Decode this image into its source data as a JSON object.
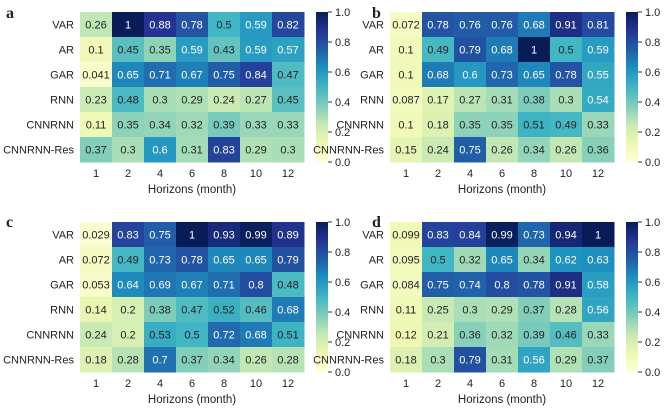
{
  "figure": {
    "colors": {
      "colormap": [
        "#ffffd9",
        "#edf8b1",
        "#c7e9b4",
        "#7fcdbb",
        "#41b6c4",
        "#1d91c0",
        "#225ea8",
        "#253494",
        "#081d58"
      ],
      "text_dark": "#222222",
      "text_light": "#ffffff"
    }
  },
  "chart_data": [
    {
      "type": "heatmap",
      "panel_label": "a",
      "rows": [
        "VAR",
        "AR",
        "GAR",
        "RNN",
        "CNNRNN",
        "CNNRNN-Res"
      ],
      "columns": [
        "1",
        "2",
        "4",
        "6",
        "8",
        "10",
        "12"
      ],
      "values": [
        [
          0.26,
          1,
          0.88,
          0.78,
          0.5,
          0.59,
          0.82
        ],
        [
          0.1,
          0.45,
          0.35,
          0.59,
          0.43,
          0.59,
          0.57
        ],
        [
          0.041,
          0.65,
          0.71,
          0.67,
          0.75,
          0.84,
          0.47
        ],
        [
          0.23,
          0.48,
          0.3,
          0.29,
          0.24,
          0.27,
          0.45
        ],
        [
          0.11,
          0.35,
          0.34,
          0.32,
          0.39,
          0.33,
          0.33
        ],
        [
          0.37,
          0.3,
          0.6,
          0.31,
          0.83,
          0.29,
          0.3
        ]
      ],
      "xlabel": "Horizons (month)",
      "ylabel": "",
      "colorbar": {
        "min": 0.0,
        "max": 1.0,
        "ticks": [
          "0.0",
          "0.2",
          "0.4",
          "0.6",
          "0.8",
          "1.0"
        ]
      }
    },
    {
      "type": "heatmap",
      "panel_label": "b",
      "rows": [
        "VAR",
        "AR",
        "GAR",
        "RNN",
        "CNNRNN",
        "CNNRNN-Res"
      ],
      "columns": [
        "1",
        "2",
        "4",
        "6",
        "8",
        "10",
        "12"
      ],
      "values": [
        [
          0.072,
          0.78,
          0.76,
          0.76,
          0.68,
          0.91,
          0.81
        ],
        [
          0.1,
          0.49,
          0.79,
          0.68,
          1,
          0.5,
          0.59
        ],
        [
          0.1,
          0.68,
          0.6,
          0.73,
          0.65,
          0.78,
          0.55
        ],
        [
          0.087,
          0.17,
          0.27,
          0.31,
          0.38,
          0.3,
          0.54
        ],
        [
          0.1,
          0.18,
          0.35,
          0.35,
          0.51,
          0.49,
          0.33
        ],
        [
          0.15,
          0.24,
          0.75,
          0.26,
          0.34,
          0.26,
          0.36
        ]
      ],
      "xlabel": "Horizons (month)",
      "ylabel": "",
      "colorbar": {
        "min": 0.0,
        "max": 1.0,
        "ticks": [
          "0.0",
          "0.2",
          "0.4",
          "0.6",
          "0.8",
          "1.0"
        ]
      }
    },
    {
      "type": "heatmap",
      "panel_label": "c",
      "rows": [
        "VAR",
        "AR",
        "GAR",
        "RNN",
        "CNNRNN",
        "CNNRNN-Res"
      ],
      "columns": [
        "1",
        "2",
        "4",
        "6",
        "8",
        "10",
        "12"
      ],
      "values": [
        [
          0.029,
          0.83,
          0.75,
          1,
          0.93,
          0.99,
          0.89
        ],
        [
          0.072,
          0.49,
          0.73,
          0.78,
          0.65,
          0.65,
          0.79
        ],
        [
          0.053,
          0.64,
          0.69,
          0.67,
          0.71,
          0.8,
          0.48
        ],
        [
          0.14,
          0.2,
          0.38,
          0.47,
          0.52,
          0.46,
          0.68
        ],
        [
          0.24,
          0.2,
          0.53,
          0.5,
          0.72,
          0.68,
          0.51
        ],
        [
          0.18,
          0.28,
          0.7,
          0.37,
          0.34,
          0.26,
          0.28
        ]
      ],
      "xlabel": "Horizons (month)",
      "ylabel": "",
      "colorbar": {
        "min": 0.0,
        "max": 1.0,
        "ticks": [
          "0.0",
          "0.2",
          "0.4",
          "0.6",
          "0.8",
          "1.0"
        ]
      }
    },
    {
      "type": "heatmap",
      "panel_label": "d",
      "rows": [
        "VAR",
        "AR",
        "GAR",
        "RNN",
        "CNNRNN",
        "CNNRNN-Res"
      ],
      "columns": [
        "1",
        "2",
        "4",
        "6",
        "8",
        "10",
        "12"
      ],
      "values": [
        [
          0.099,
          0.83,
          0.84,
          0.99,
          0.73,
          0.94,
          1
        ],
        [
          0.095,
          0.5,
          0.32,
          0.65,
          0.34,
          0.62,
          0.63
        ],
        [
          0.084,
          0.75,
          0.74,
          0.8,
          0.78,
          0.91,
          0.58
        ],
        [
          0.11,
          0.25,
          0.3,
          0.29,
          0.37,
          0.28,
          0.56
        ],
        [
          0.12,
          0.21,
          0.36,
          0.32,
          0.39,
          0.46,
          0.33
        ],
        [
          0.18,
          0.3,
          0.79,
          0.31,
          0.56,
          0.29,
          0.37
        ]
      ],
      "xlabel": "Horizons (month)",
      "ylabel": "",
      "colorbar": {
        "min": 0.0,
        "max": 1.0,
        "ticks": [
          "0.0",
          "0.2",
          "0.4",
          "0.6",
          "0.8",
          "1.0"
        ]
      }
    }
  ]
}
